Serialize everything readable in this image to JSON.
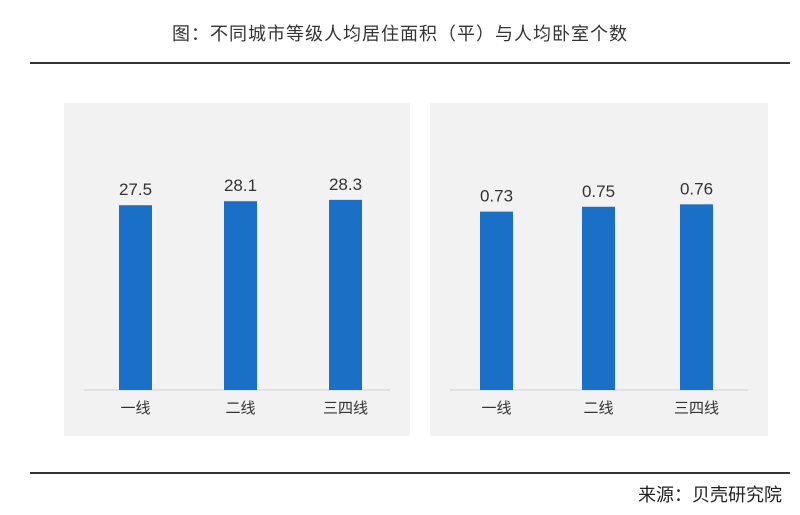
{
  "page": {
    "title": "图：不同城市等级人均居住面积（平）与人均卧室个数",
    "source": "来源：贝壳研究院"
  },
  "colors": {
    "bar": "#1a6fc7",
    "panel_bg": "#f2f2f2"
  },
  "chart_data": [
    {
      "type": "bar",
      "title": "",
      "categories": [
        "一线",
        "二线",
        "三四线"
      ],
      "values": [
        27.5,
        28.1,
        28.3
      ],
      "ylim": [
        0,
        32
      ],
      "grid": false,
      "legend": "none"
    },
    {
      "type": "bar",
      "title": "",
      "categories": [
        "一线",
        "二线",
        "三四线"
      ],
      "values": [
        0.73,
        0.75,
        0.76
      ],
      "ylim": [
        0,
        0.88
      ],
      "grid": false,
      "legend": "none"
    }
  ]
}
